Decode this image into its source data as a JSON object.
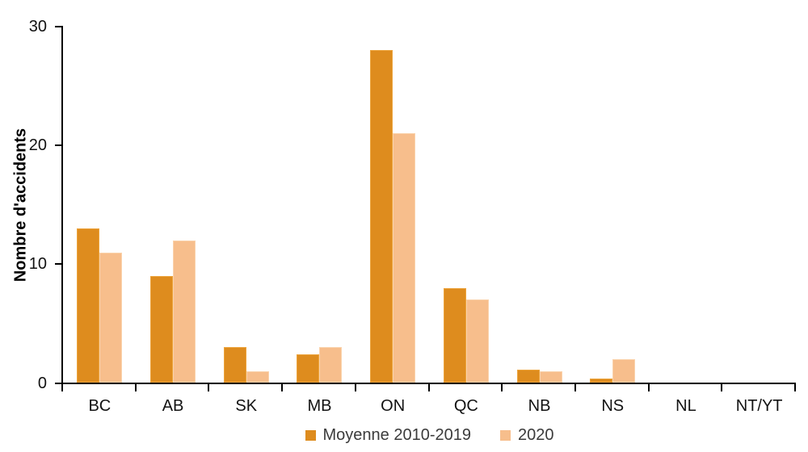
{
  "chart_data": {
    "type": "bar",
    "title": "",
    "categories": [
      "BC",
      "AB",
      "SK",
      "MB",
      "ON",
      "QC",
      "NB",
      "NS",
      "NL",
      "NT/YT"
    ],
    "series": [
      {
        "name": "Moyenne 2010-2019",
        "color": "#DE8C1E",
        "border_color": "#EDA43C",
        "values": [
          13,
          9,
          3,
          2.4,
          28,
          8,
          1.1,
          0.4,
          0,
          0
        ]
      },
      {
        "name": "2020",
        "color": "#F7BE8C",
        "border_color": "#FAD3AC",
        "values": [
          11,
          12,
          1,
          3,
          21,
          7,
          1,
          2,
          0,
          0
        ]
      }
    ],
    "xlabel": "",
    "ylabel": "Nombre d'accidents",
    "ylim": [
      0,
      30
    ],
    "yticks": [
      0,
      10,
      20,
      30
    ],
    "grid": false,
    "legend_position": "bottom-center"
  },
  "colors": {
    "axis": "#000000",
    "tick_text": "#121212",
    "legend_text": "#3b3b3b",
    "background": "#ffffff"
  }
}
